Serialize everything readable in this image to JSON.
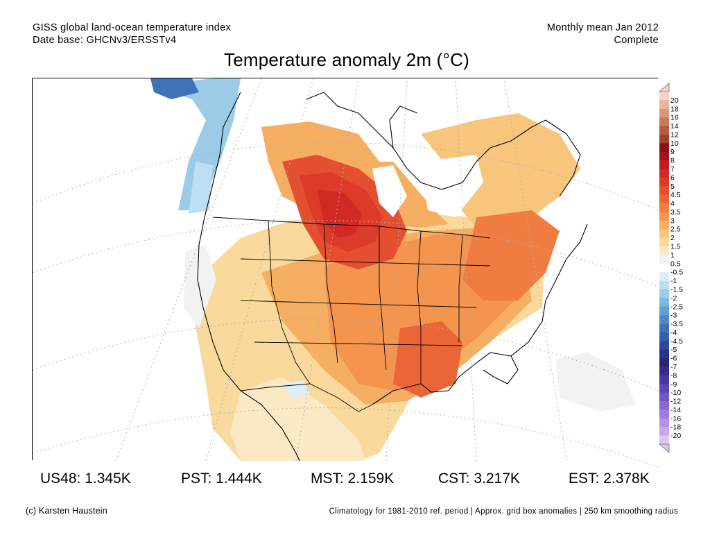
{
  "header": {
    "left_line1": "GISS global land-ocean temperature index",
    "left_line2": "Date base: GHCNv3/ERSSTv4",
    "right_line1": "Monthly mean Jan 2012",
    "right_line2": "Complete"
  },
  "title": "Temperature anomaly 2m (°C)",
  "colorbar": {
    "labels": [
      "20",
      "18",
      "16",
      "14",
      "12",
      "10",
      "9",
      "8",
      "7",
      "6",
      "5",
      "4.5",
      "4",
      "3.5",
      "3",
      "2.5",
      "2",
      "1.5",
      "1",
      "0.5",
      "-0.5",
      "-1",
      "-1.5",
      "-2",
      "-2.5",
      "-3",
      "-3.5",
      "-4",
      "-4.5",
      "-5",
      "-6",
      "-7",
      "-8",
      "-9",
      "-10",
      "-12",
      "-14",
      "-16",
      "-18",
      "-20"
    ],
    "colors": [
      "#f6d3c3",
      "#e8b49e",
      "#d9987c",
      "#c77a5c",
      "#b45c40",
      "#a0412a",
      "#8c0d12",
      "#a8131a",
      "#c01c20",
      "#d12a25",
      "#dc3b2a",
      "#e34f30",
      "#ea6637",
      "#ef7d42",
      "#f3954f",
      "#f6ae62",
      "#f8c57c",
      "#f9da9c",
      "#fae9c4",
      "#f2f2f2",
      "#ffffff",
      "#dceefa",
      "#bcdff3",
      "#9ccbe8",
      "#7eb7de",
      "#63a1d2",
      "#4c8bc6",
      "#3f73b8",
      "#345ea9",
      "#2c489a",
      "#283489",
      "#2a2478",
      "#3b2a8e",
      "#4a35a3",
      "#5c45b6",
      "#7054c4",
      "#8866d1",
      "#9e7bdc",
      "#b592e5",
      "#c9a9ee",
      "#dcc3f3"
    ],
    "top_arrow_color": "#f6d3c3",
    "bottom_arrow_color": "#dcc3f3"
  },
  "map": {
    "grid_color": "#b0b0b0",
    "missing_color": "#ffffff",
    "outline_color": "#000000"
  },
  "stats": [
    {
      "label": "US48: 1.345K"
    },
    {
      "label": "PST: 1.444K"
    },
    {
      "label": "MST: 2.159K"
    },
    {
      "label": "CST: 3.217K"
    },
    {
      "label": "EST: 2.378K"
    }
  ],
  "footer": {
    "credit": "(c) Karsten Haustein",
    "note": "Climatology for 1981-2010 ref. period | Approx. grid box anomalies | 250 km smoothing radius"
  }
}
